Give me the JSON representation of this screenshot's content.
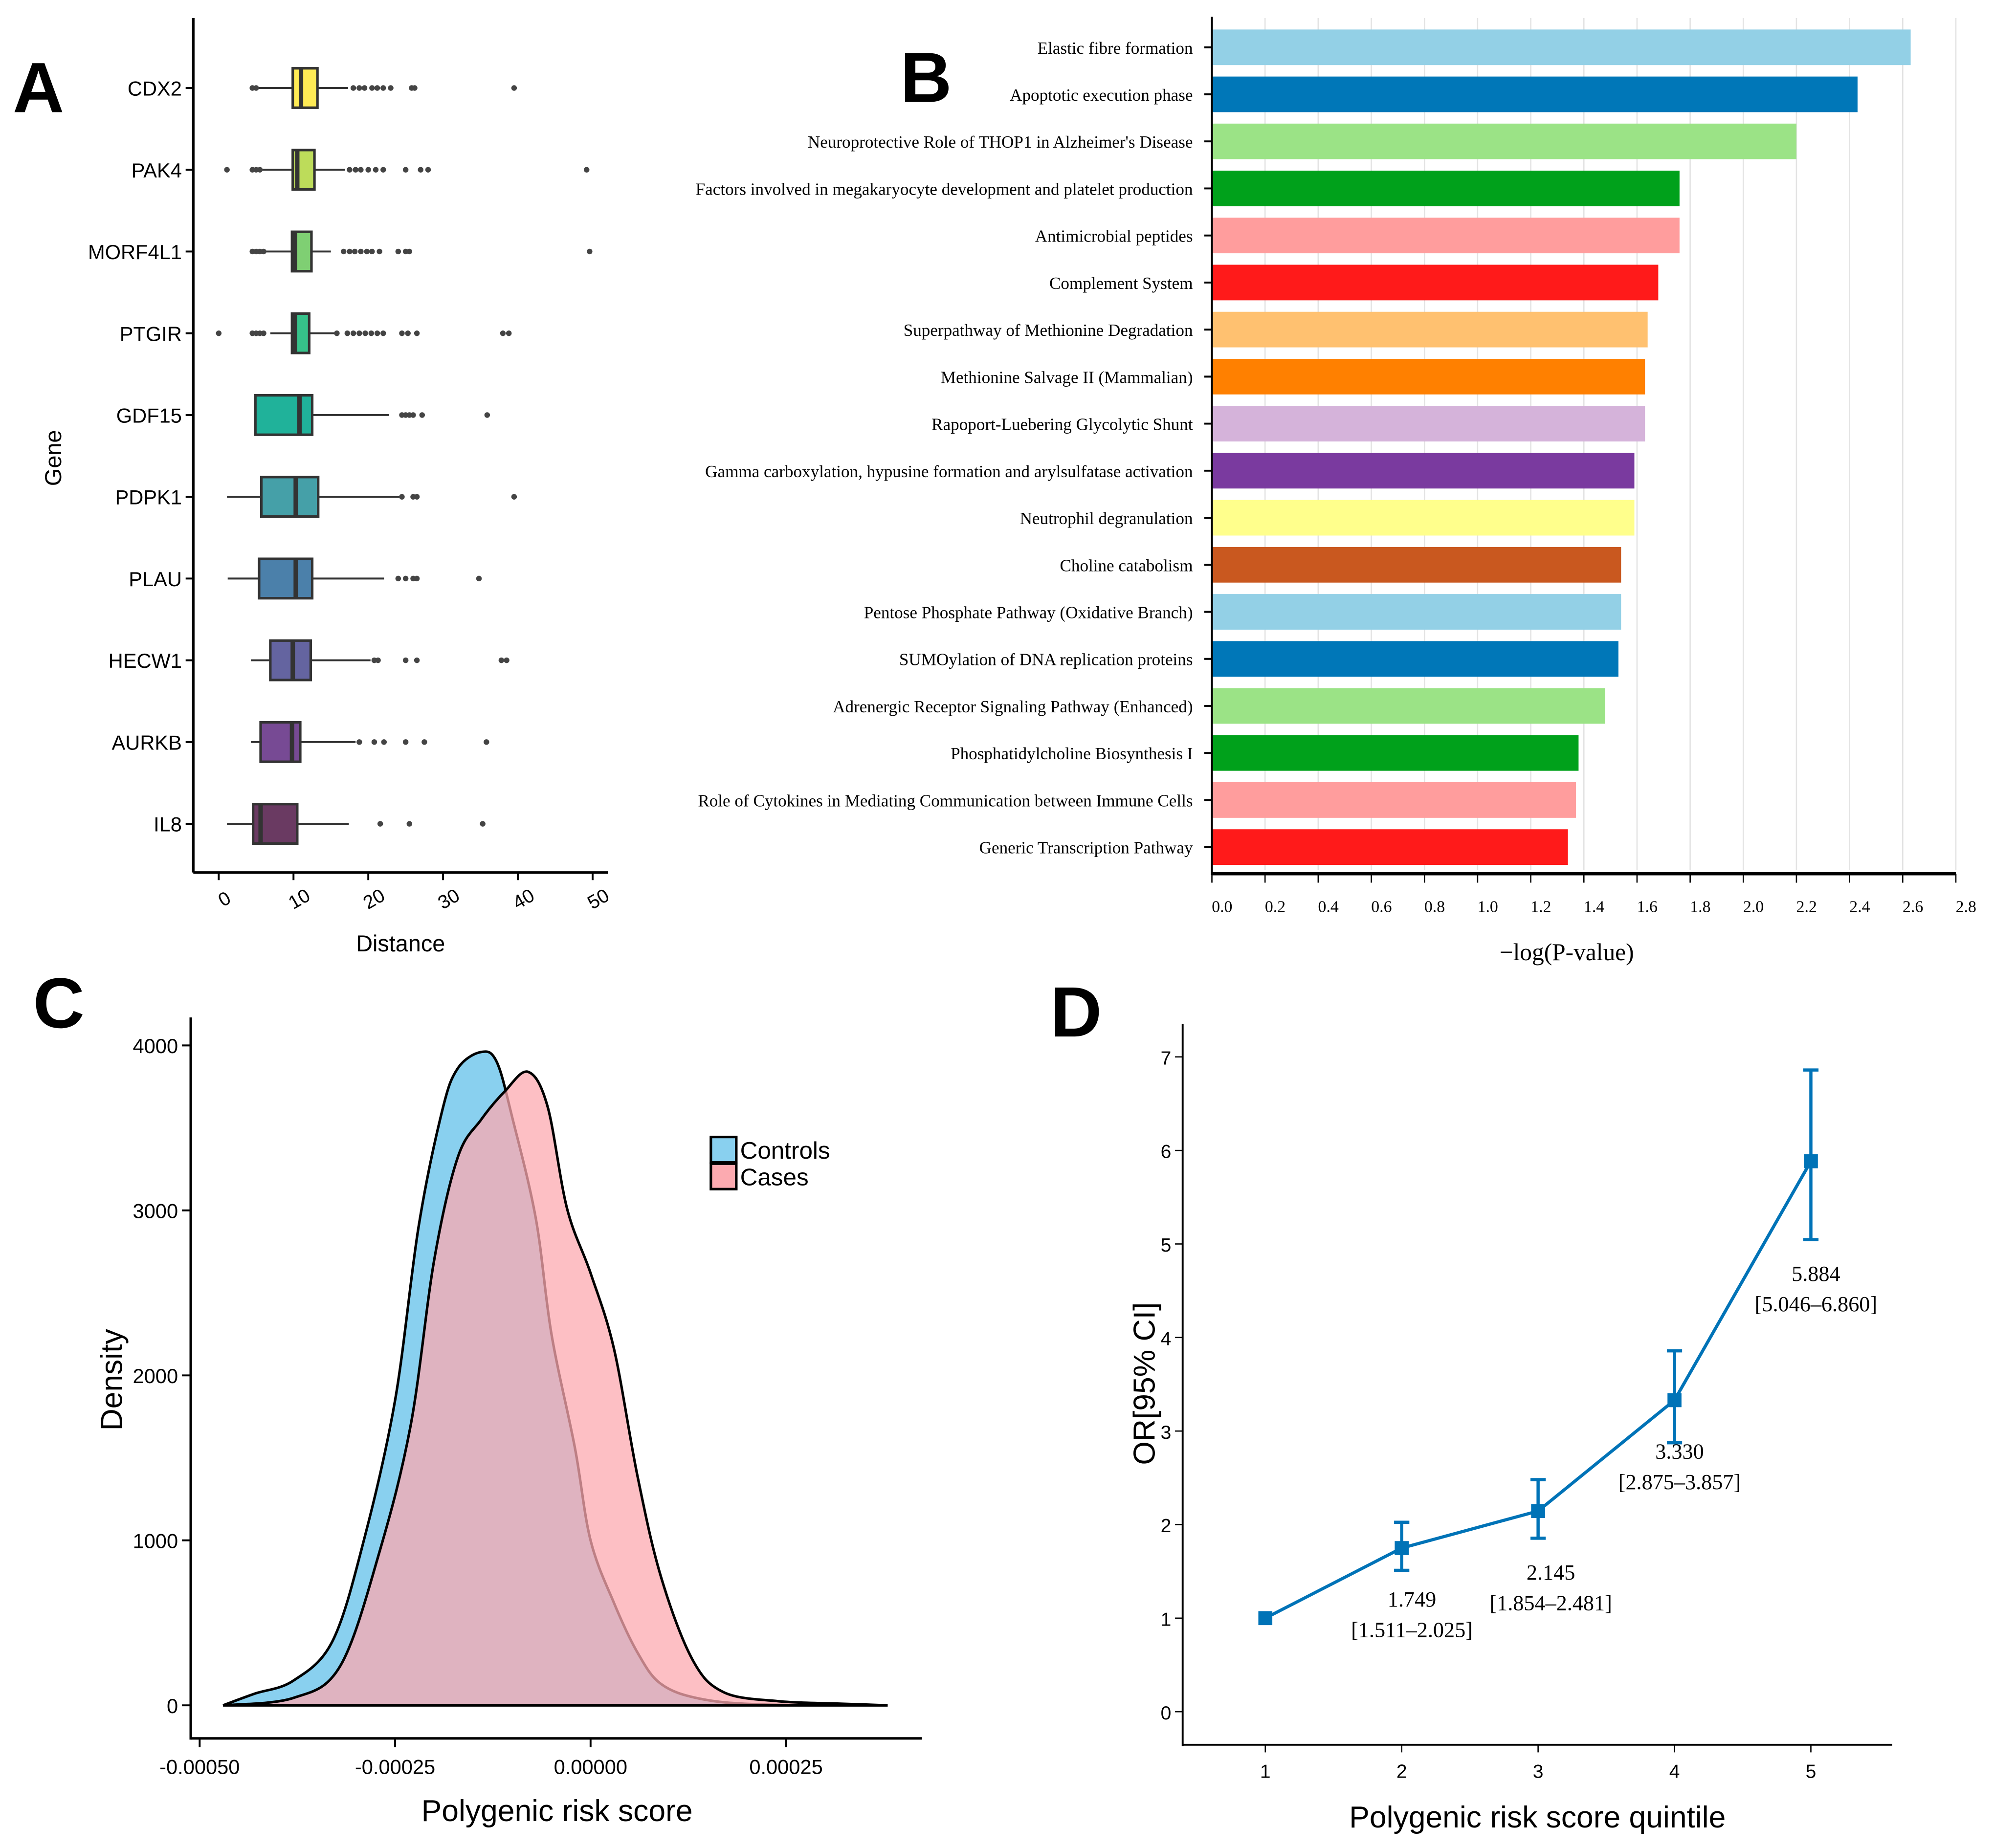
{
  "chart_data": [
    {
      "panel": "A",
      "type": "box",
      "xlabel": "Distance",
      "ylabel": "Gene",
      "xlim": [
        0,
        50
      ],
      "xticks": [
        "0",
        "10",
        "20",
        "30",
        "40",
        "50"
      ],
      "categories": [
        "CDX2",
        "PAK4",
        "MORF4L1",
        "PTGIR",
        "GDF15",
        "PDPK1",
        "PLAU",
        "HECW1",
        "AURKB",
        "IL8"
      ],
      "colors": [
        "#ffeb55",
        "#bddc5a",
        "#7fcf73",
        "#36c28a",
        "#20b29a",
        "#45a0a8",
        "#4b80aa",
        "#6464a0",
        "#774a94",
        "#6a3a62"
      ],
      "boxes": [
        {
          "whisker_low": 4.2,
          "q1": 9.9,
          "median": 11.0,
          "q3": 13.2,
          "whisker_high": 17.3,
          "outliers": [
            4.5,
            5.0,
            18.0,
            18.8,
            19.5,
            20.5,
            21.2,
            22.0,
            23.0,
            25.8,
            26.2,
            39.5
          ]
        },
        {
          "whisker_low": 5.8,
          "q1": 9.9,
          "median": 10.5,
          "q3": 12.8,
          "whisker_high": 16.9,
          "outliers": [
            1.1,
            4.5,
            5.0,
            5.5,
            17.5,
            18.3,
            19.0,
            20.0,
            21.0,
            22.0,
            25.0,
            27.0,
            28.0,
            49.2
          ]
        },
        {
          "whisker_low": 6.1,
          "q1": 9.8,
          "median": 10.2,
          "q3": 12.4,
          "whisker_high": 15.0,
          "outliers": [
            4.5,
            5.0,
            5.5,
            6.0,
            16.7,
            17.5,
            18.2,
            19.0,
            19.8,
            20.5,
            21.5,
            24.0,
            25.0,
            25.5,
            49.6
          ]
        },
        {
          "whisker_low": 6.9,
          "q1": 9.8,
          "median": 10.2,
          "q3": 12.1,
          "whisker_high": 15.5,
          "outliers": [
            0.0,
            4.5,
            5.0,
            5.5,
            6.0,
            15.8,
            17.2,
            18.0,
            18.8,
            19.6,
            20.4,
            21.2,
            22.0,
            24.5,
            25.3,
            26.5,
            38.0,
            38.8
          ]
        },
        {
          "whisker_low": 4.7,
          "q1": 4.9,
          "median": 10.8,
          "q3": 12.5,
          "whisker_high": 22.8,
          "outliers": [
            24.5,
            25.0,
            25.5,
            26.0,
            27.2,
            35.9
          ]
        },
        {
          "whisker_low": 1.1,
          "q1": 5.7,
          "median": 10.3,
          "q3": 13.3,
          "whisker_high": 24.5,
          "outliers": [
            24.5,
            26.0,
            26.5,
            39.5
          ]
        },
        {
          "whisker_low": 1.2,
          "q1": 5.4,
          "median": 10.3,
          "q3": 12.5,
          "whisker_high": 22.1,
          "outliers": [
            24.0,
            25.0,
            26.0,
            26.5,
            34.8
          ]
        },
        {
          "whisker_low": 4.3,
          "q1": 6.9,
          "median": 9.9,
          "q3": 12.3,
          "whisker_high": 20.3,
          "outliers": [
            20.8,
            21.3,
            25.0,
            26.5,
            37.8,
            38.5
          ]
        },
        {
          "whisker_low": 4.3,
          "q1": 5.6,
          "median": 9.8,
          "q3": 10.9,
          "whisker_high": 18.3,
          "outliers": [
            18.8,
            20.8,
            22.1,
            25.0,
            27.5,
            35.8
          ]
        },
        {
          "whisker_low": 1.1,
          "q1": 4.6,
          "median": 5.6,
          "q3": 10.5,
          "whisker_high": 17.4,
          "outliers": [
            21.6,
            25.5,
            35.3
          ]
        }
      ]
    },
    {
      "panel": "B",
      "type": "bar",
      "orientation": "horizontal",
      "xlabel": "−log(P-value)",
      "xlim": [
        0,
        2.8
      ],
      "xticks": [
        "0.0",
        "0.2",
        "0.4",
        "0.6",
        "0.8",
        "1.0",
        "1.2",
        "1.4",
        "1.6",
        "1.8",
        "2.0",
        "2.2",
        "2.4",
        "2.6",
        "2.8"
      ],
      "grid": "vertical",
      "categories": [
        "Elastic fibre formation",
        "Apoptotic execution phase",
        "Neuroprotective Role of THOP1 in Alzheimer's Disease",
        "Factors involved in megakaryocyte development and platelet production",
        "Antimicrobial peptides",
        "Complement System",
        "Superpathway of Methionine Degradation",
        "Methionine Salvage II (Mammalian)",
        "Rapoport-Luebering Glycolytic Shunt",
        "Gamma carboxylation, hypusine formation and arylsulfatase activation",
        "Neutrophil degranulation",
        "Choline catabolism",
        "Pentose Phosphate Pathway (Oxidative Branch)",
        "SUMOylation of DNA replication proteins",
        "Adrenergic Receptor Signaling Pathway (Enhanced)",
        "Phosphatidylcholine Biosynthesis I",
        "Role of Cytokines in Mediating Communication between Immune Cells",
        "Generic Transcription Pathway"
      ],
      "values": [
        2.63,
        2.43,
        2.2,
        1.76,
        1.76,
        1.68,
        1.64,
        1.63,
        1.63,
        1.59,
        1.59,
        1.54,
        1.54,
        1.53,
        1.48,
        1.38,
        1.37,
        1.34
      ],
      "colors": [
        "#93d0e6",
        "#0077b8",
        "#9be386",
        "#00a11b",
        "#ff9d9d",
        "#ff1a1a",
        "#ffc170",
        "#ff8000",
        "#d5b3da",
        "#7a3a9f",
        "#ffff8c",
        "#c9581f",
        "#93d0e6",
        "#0077b8",
        "#9be386",
        "#00a11b",
        "#ff9d9d",
        "#ff1a1a"
      ]
    },
    {
      "panel": "C",
      "type": "area",
      "xlabel": "Polygenic risk score",
      "ylabel": "Density",
      "xlim": [
        -0.0005,
        0.0004
      ],
      "ylim": [
        0,
        4200
      ],
      "xticks": [
        "-0.00050",
        "-0.00025",
        "0.00000",
        "0.00025"
      ],
      "yticks": [
        "0",
        "1000",
        "2000",
        "3000",
        "4000"
      ],
      "legend_position": "top-right",
      "series": [
        {
          "name": "Controls",
          "color": "#89d0ef",
          "x": [
            -0.00047,
            -0.00043,
            -0.00038,
            -0.00033,
            -0.00029,
            -0.00025,
            -0.00022,
            -0.00019,
            -0.00017,
            -0.00014,
            -0.00012,
            -0.0001,
            -7e-05,
            -5e-05,
            -2e-05,
            0,
            3e-05,
            6e-05,
            9e-05,
            0.00014,
            0.00022,
            0.00038
          ],
          "y": [
            0,
            70,
            150,
            390,
            1000,
            1850,
            2900,
            3600,
            3860,
            3960,
            3900,
            3560,
            2950,
            2250,
            1560,
            1000,
            620,
            320,
            130,
            40,
            5,
            0
          ]
        },
        {
          "name": "Cases",
          "color": "#fcaab0",
          "x": [
            -0.00047,
            -0.00038,
            -0.00032,
            -0.00027,
            -0.00023,
            -0.0002,
            -0.00017,
            -0.00014,
            -0.00011,
            -8e-05,
            -5.5e-05,
            -3e-05,
            0,
            3e-05,
            6e-05,
            9e-05,
            0.00013,
            0.00017,
            0.00024,
            0.00032,
            0.00038
          ],
          "y": [
            0,
            45,
            240,
            930,
            1700,
            2700,
            3320,
            3550,
            3720,
            3840,
            3630,
            3010,
            2620,
            2160,
            1390,
            780,
            280,
            80,
            25,
            10,
            0
          ]
        }
      ]
    },
    {
      "panel": "D",
      "type": "line",
      "xlabel": "Polygenic risk score quintile",
      "ylabel": "OR[95% CI]",
      "xlim": [
        0.3,
        5.6
      ],
      "ylim": [
        -0.35,
        7.35
      ],
      "xticks": [
        "1",
        "2",
        "3",
        "4",
        "5"
      ],
      "yticks": [
        "0",
        "1",
        "2",
        "3",
        "4",
        "5",
        "6",
        "7"
      ],
      "color": "#0073b7",
      "x": [
        1,
        2,
        3,
        4,
        5
      ],
      "y": [
        1.0,
        1.749,
        2.145,
        3.33,
        5.884
      ],
      "ci_low": [
        null,
        1.511,
        1.854,
        2.875,
        5.046
      ],
      "ci_high": [
        null,
        2.025,
        2.481,
        3.857,
        6.86
      ],
      "labels": [
        null,
        {
          "value": "1.749",
          "ci": "[1.511–2.025]"
        },
        {
          "value": "2.145",
          "ci": "[1.854–2.481]"
        },
        {
          "value": "3.330",
          "ci": "[2.875–3.857]"
        },
        {
          "value": "5.884",
          "ci": "[5.046–6.860]"
        }
      ]
    }
  ],
  "panel_letters": [
    "A",
    "B",
    "C",
    "D"
  ]
}
